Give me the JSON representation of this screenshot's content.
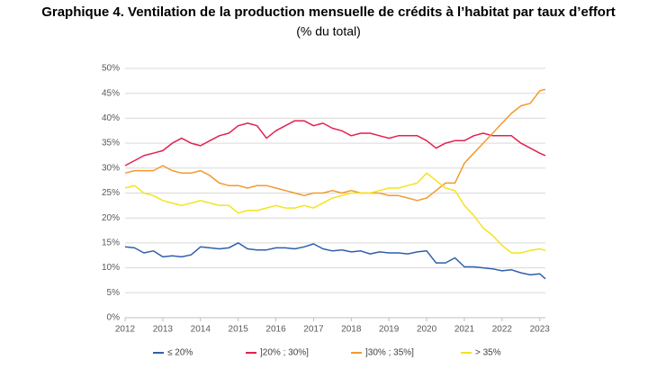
{
  "chart_data": {
    "type": "line",
    "title": "Graphique 4. Ventilation de la production mensuelle de crédits à l’habitat par taux d’effort",
    "subtitle": "(% du total)",
    "x": [
      2012,
      2012.25,
      2012.5,
      2012.75,
      2013,
      2013.25,
      2013.5,
      2013.75,
      2014,
      2014.25,
      2014.5,
      2014.75,
      2015,
      2015.25,
      2015.5,
      2015.75,
      2016,
      2016.25,
      2016.5,
      2016.75,
      2017,
      2017.25,
      2017.5,
      2017.75,
      2018,
      2018.25,
      2018.5,
      2018.75,
      2019,
      2019.25,
      2019.5,
      2019.75,
      2020,
      2020.25,
      2020.5,
      2020.75,
      2021,
      2021.25,
      2021.5,
      2021.75,
      2022,
      2022.25,
      2022.5,
      2022.75,
      2023,
      2023.15
    ],
    "series": [
      {
        "name": "≤ 20%",
        "color": "#2f5fac",
        "values": [
          14.2,
          14.0,
          13.0,
          13.4,
          12.2,
          12.4,
          12.2,
          12.6,
          14.2,
          14.0,
          13.8,
          14.0,
          15.0,
          13.8,
          13.6,
          13.6,
          14.0,
          14.0,
          13.8,
          14.2,
          14.8,
          13.8,
          13.4,
          13.6,
          13.2,
          13.4,
          12.8,
          13.2,
          13.0,
          13.0,
          12.8,
          13.2,
          13.4,
          11.0,
          11.0,
          12.0,
          10.2,
          10.2,
          10.0,
          9.8,
          9.4,
          9.6,
          9.0,
          8.6,
          8.8,
          7.8
        ]
      },
      {
        "name": "]20% ; 30%]",
        "color": "#e3214f",
        "values": [
          30.5,
          31.5,
          32.5,
          33.0,
          33.5,
          35.0,
          36.0,
          35.0,
          34.5,
          35.5,
          36.5,
          37.0,
          38.5,
          39.0,
          38.5,
          36.0,
          37.5,
          38.5,
          39.5,
          39.5,
          38.5,
          39.0,
          38.0,
          37.5,
          36.5,
          37.0,
          37.0,
          36.5,
          36.0,
          36.5,
          36.5,
          36.5,
          35.5,
          34.0,
          35.0,
          35.5,
          35.5,
          36.5,
          37.0,
          36.5,
          36.5,
          36.5,
          35.0,
          34.0,
          33.0,
          32.5
        ]
      },
      {
        "name": "]30% ; 35%]",
        "color": "#f39a2e",
        "values": [
          29.0,
          29.5,
          29.5,
          29.5,
          30.5,
          29.5,
          29.0,
          29.0,
          29.5,
          28.5,
          27.0,
          26.5,
          26.5,
          26.0,
          26.5,
          26.5,
          26.0,
          25.5,
          25.0,
          24.5,
          25.0,
          25.0,
          25.5,
          25.0,
          25.5,
          25.0,
          25.0,
          25.0,
          24.5,
          24.5,
          24.0,
          23.5,
          24.0,
          25.5,
          27.0,
          27.0,
          31.0,
          33.0,
          35.0,
          37.0,
          39.0,
          41.0,
          42.5,
          43.0,
          45.5,
          45.8
        ]
      },
      {
        "name": "> 35%",
        "color": "#f5e31d",
        "values": [
          26.0,
          26.5,
          25.0,
          24.5,
          23.5,
          23.0,
          22.5,
          23.0,
          23.5,
          23.0,
          22.5,
          22.5,
          21.0,
          21.5,
          21.5,
          22.0,
          22.5,
          22.0,
          22.0,
          22.5,
          22.0,
          23.0,
          24.0,
          24.5,
          25.0,
          25.0,
          25.0,
          25.5,
          26.0,
          26.0,
          26.5,
          27.0,
          29.0,
          27.5,
          26.0,
          25.5,
          22.5,
          20.5,
          18.0,
          16.5,
          14.5,
          13.0,
          13.0,
          13.5,
          13.8,
          13.5
        ]
      }
    ],
    "xlim": [
      2012,
      2023.15
    ],
    "xticks": [
      2012,
      2013,
      2014,
      2015,
      2016,
      2017,
      2018,
      2019,
      2020,
      2021,
      2022,
      2023
    ],
    "ylim": [
      0,
      50
    ],
    "yticks": [
      {
        "value": 0,
        "label": "0%"
      },
      {
        "value": 5,
        "label": "5%"
      },
      {
        "value": 10,
        "label": "10%"
      },
      {
        "value": 15,
        "label": "15%"
      },
      {
        "value": 20,
        "label": "20%"
      },
      {
        "value": 25,
        "label": "25%"
      },
      {
        "value": 30,
        "label": "30%"
      },
      {
        "value": 35,
        "label": "35%"
      },
      {
        "value": 40,
        "label": "40%"
      },
      {
        "value": 45,
        "label": "45%"
      },
      {
        "value": 50,
        "label": "50%"
      }
    ],
    "grid": true,
    "legend": "bottom"
  }
}
